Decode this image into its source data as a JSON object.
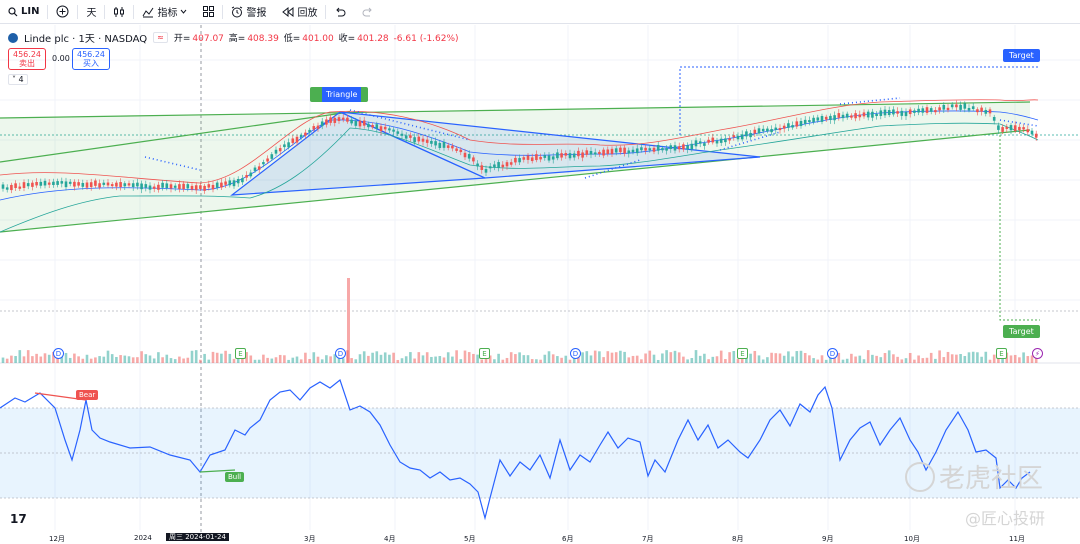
{
  "toolbar": {
    "symbol": "LIN",
    "interval": "天",
    "indicators_label": "指标",
    "alert_label": "警报",
    "replay_label": "回放"
  },
  "legend": {
    "title": "Linde plc · 1天 · NASDAQ",
    "open_label": "开=",
    "open": "407.07",
    "high_label": "高=",
    "high": "408.39",
    "low_label": "低=",
    "low": "401.00",
    "close_label": "收=",
    "close": "401.28",
    "change": "-6.61 (-1.62%)",
    "sell_price": "456.24",
    "sell_label": "卖出",
    "spread": "0.00",
    "buy_price": "456.24",
    "buy_label": "买入",
    "indicator_count": "4"
  },
  "drawings": {
    "triangle_label": "Triangle",
    "target_top": "Target",
    "target_bottom": "Target",
    "bear_label": "Bear",
    "bull_label": "Bull"
  },
  "events": [
    "D",
    "E",
    "D",
    "E",
    "D",
    "E",
    "D",
    "E"
  ],
  "x_axis": [
    "12月",
    "2024",
    "3月",
    "4月",
    "5月",
    "6月",
    "7月",
    "8月",
    "9月",
    "10月",
    "11月"
  ],
  "crosshair_date": "周三 2024-01-24",
  "watermarks": {
    "primary": "老虎社区",
    "secondary": "@匠心投研"
  },
  "colors": {
    "up": "#26a69a",
    "down": "#ef5350",
    "accent": "#2962ff",
    "rsi": "#2962ff",
    "channel": "#4caf50"
  }
}
